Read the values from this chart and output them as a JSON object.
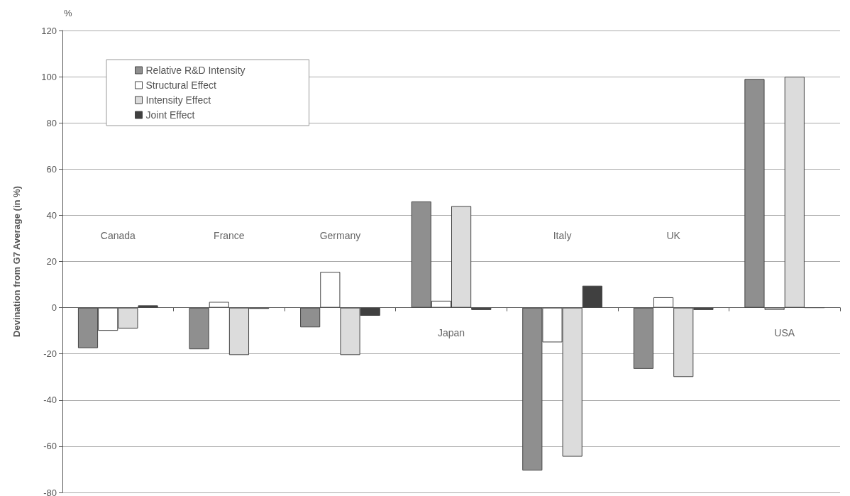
{
  "chart_data": {
    "type": "bar",
    "ylabel": "Devination from G7 Average (in %)",
    "annotations": [
      "%"
    ],
    "categories": [
      "Canada",
      "France",
      "Germany",
      "Japan",
      "Italy",
      "UK",
      "USA"
    ],
    "series": [
      {
        "name": "Relative R&D Intensity",
        "color": "#8f8f8f",
        "values": [
          -17.5,
          -18,
          -8.5,
          46,
          -70.5,
          -26.5,
          99
        ]
      },
      {
        "name": "Structural Effect",
        "color": "#ffffff",
        "values": [
          -10,
          2.5,
          15.5,
          3,
          -15,
          4.5,
          -1
        ]
      },
      {
        "name": "Intensity Effect",
        "color": "#dcdcdc",
        "values": [
          -9,
          -20.5,
          -20.5,
          44,
          -64.5,
          -30,
          100
        ]
      },
      {
        "name": "Joint Effect",
        "color": "#404040",
        "values": [
          1,
          -0.5,
          -3.5,
          -1,
          9.5,
          -1,
          0
        ]
      }
    ],
    "ylim": [
      -80,
      120
    ],
    "yticks": [
      -80,
      -60,
      -40,
      -20,
      0,
      20,
      40,
      60,
      80,
      100,
      120
    ],
    "grid": "y",
    "legend": "top left"
  }
}
